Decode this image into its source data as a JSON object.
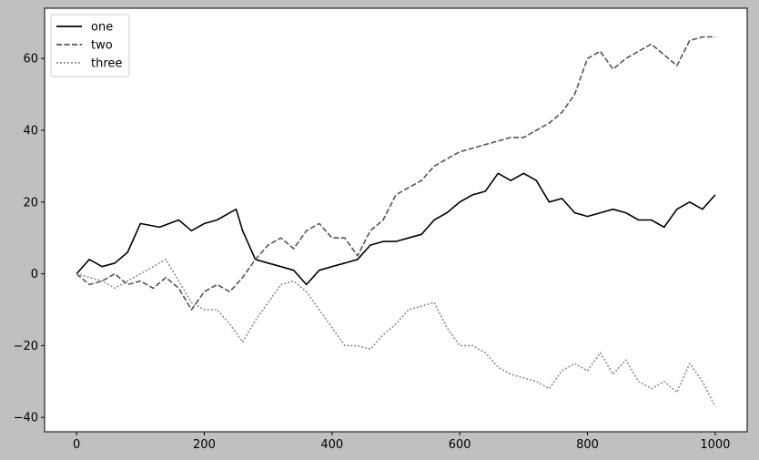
{
  "chart_data": {
    "type": "line",
    "title": "",
    "xlabel": "",
    "ylabel": "",
    "xlim": [
      -50,
      1050
    ],
    "ylim": [
      -44,
      74
    ],
    "xticks": [
      0,
      200,
      400,
      600,
      800,
      1000
    ],
    "yticks": [
      -40,
      -20,
      0,
      20,
      40,
      60
    ],
    "grid": false,
    "legend": "top-left",
    "colors": {
      "figure_bg": "#c0c0c0",
      "axes_bg": "#ffffff"
    },
    "series": [
      {
        "name": "one",
        "color": "#000000",
        "dash": "solid",
        "x": [
          0,
          20,
          40,
          60,
          80,
          100,
          130,
          160,
          180,
          200,
          220,
          240,
          250,
          260,
          280,
          300,
          320,
          340,
          360,
          380,
          400,
          420,
          440,
          460,
          480,
          500,
          520,
          540,
          560,
          580,
          600,
          620,
          640,
          660,
          680,
          700,
          720,
          740,
          760,
          780,
          800,
          820,
          840,
          860,
          880,
          900,
          920,
          940,
          960,
          980,
          1000
        ],
        "y": [
          0,
          4,
          2,
          3,
          6,
          14,
          13,
          15,
          12,
          14,
          15,
          17,
          18,
          12,
          4,
          3,
          2,
          1,
          -3,
          1,
          2,
          3,
          4,
          8,
          9,
          9,
          10,
          11,
          15,
          17,
          20,
          22,
          23,
          28,
          26,
          28,
          26,
          20,
          21,
          17,
          16,
          17,
          18,
          17,
          15,
          15,
          13,
          18,
          20,
          18,
          22
        ]
      },
      {
        "name": "two",
        "color": "#555555",
        "dash": "dashed",
        "x": [
          0,
          20,
          40,
          60,
          80,
          100,
          120,
          140,
          160,
          180,
          200,
          220,
          240,
          260,
          280,
          300,
          320,
          340,
          360,
          380,
          400,
          420,
          440,
          460,
          480,
          500,
          520,
          540,
          560,
          580,
          600,
          620,
          640,
          660,
          680,
          700,
          720,
          740,
          760,
          780,
          800,
          820,
          840,
          860,
          880,
          900,
          920,
          940,
          960,
          980,
          1000
        ],
        "y": [
          0,
          -3,
          -2,
          0,
          -3,
          -2,
          -4,
          -1,
          -4,
          -10,
          -5,
          -3,
          -5,
          -1,
          4,
          8,
          10,
          7,
          12,
          14,
          10,
          10,
          5,
          12,
          15,
          22,
          24,
          26,
          30,
          32,
          34,
          35,
          36,
          37,
          38,
          38,
          40,
          42,
          45,
          50,
          60,
          62,
          57,
          60,
          62,
          64,
          61,
          58,
          65,
          66,
          66
        ]
      },
      {
        "name": "three",
        "color": "#8c8c8c",
        "dash": "dotted",
        "x": [
          0,
          20,
          40,
          60,
          80,
          100,
          120,
          140,
          160,
          180,
          200,
          220,
          240,
          260,
          280,
          300,
          320,
          340,
          360,
          380,
          400,
          420,
          440,
          460,
          480,
          500,
          520,
          540,
          560,
          580,
          600,
          620,
          640,
          660,
          680,
          700,
          720,
          740,
          760,
          780,
          800,
          820,
          840,
          860,
          880,
          900,
          920,
          940,
          960,
          980,
          1000
        ],
        "y": [
          0,
          -1,
          -2,
          -4,
          -2,
          0,
          2,
          4,
          -2,
          -8,
          -10,
          -10,
          -14,
          -19,
          -13,
          -8,
          -3,
          -2,
          -5,
          -10,
          -15,
          -20,
          -20,
          -21,
          -17,
          -14,
          -10,
          -9,
          -8,
          -15,
          -20,
          -20,
          -22,
          -26,
          -28,
          -29,
          -30,
          -32,
          -27,
          -25,
          -27,
          -22,
          -28,
          -24,
          -30,
          -32,
          -30,
          -33,
          -25,
          -30,
          -37
        ]
      }
    ]
  }
}
